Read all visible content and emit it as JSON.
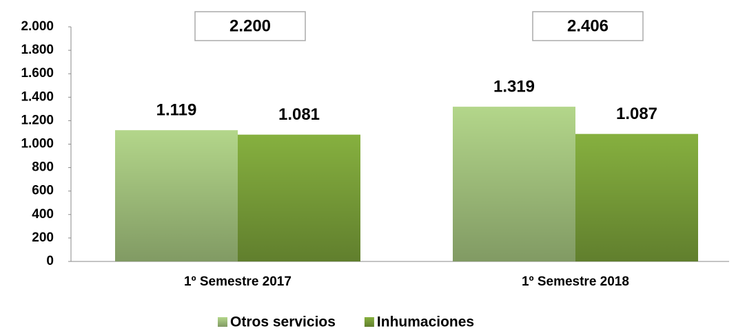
{
  "chart_data": {
    "type": "bar",
    "categories": [
      "1º Semestre 2017",
      "1º Semestre 2018"
    ],
    "series": [
      {
        "name": "Otros servicios",
        "color": "#b3d68a",
        "values": [
          1119,
          1319
        ],
        "value_labels": [
          "1.119",
          "1.319"
        ]
      },
      {
        "name": "Inhumaciones",
        "color": "#86b03f",
        "values": [
          1081,
          1087
        ],
        "value_labels": [
          "1.081",
          "1.087"
        ]
      }
    ],
    "totals": [
      2200,
      2406
    ],
    "total_labels": [
      "2.200",
      "2.406"
    ],
    "ylim": [
      0,
      2000
    ],
    "yticks": [
      0,
      200,
      400,
      600,
      800,
      {
        "value": 1000,
        "label": "1.000"
      },
      {
        "value": 1200,
        "label": "1.200"
      },
      {
        "value": 1400,
        "label": "1.400"
      },
      {
        "value": 1600,
        "label": "1.600"
      },
      {
        "value": 1800,
        "label": "1.800"
      },
      {
        "value": 2000,
        "label": "2.000"
      }
    ],
    "legend": "bottom"
  }
}
